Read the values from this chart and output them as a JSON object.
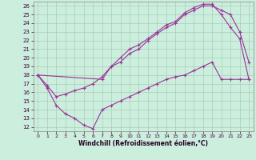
{
  "xlabel": "Windchill (Refroidissement éolien,°C)",
  "bg_color": "#cceedd",
  "grid_color": "#aaccbb",
  "line_color": "#993399",
  "xlim": [
    -0.5,
    23.5
  ],
  "ylim": [
    11.5,
    26.5
  ],
  "xticks": [
    0,
    1,
    2,
    3,
    4,
    5,
    6,
    7,
    8,
    9,
    10,
    11,
    12,
    13,
    14,
    15,
    16,
    17,
    18,
    19,
    20,
    21,
    22,
    23
  ],
  "yticks": [
    12,
    13,
    14,
    15,
    16,
    17,
    18,
    19,
    20,
    21,
    22,
    23,
    24,
    25,
    26
  ],
  "line1_x": [
    0,
    1,
    2,
    3,
    4,
    5,
    6,
    7,
    8,
    9,
    10,
    11,
    12,
    13,
    14,
    15,
    16,
    17,
    18,
    19,
    20,
    21,
    22,
    23
  ],
  "line1_y": [
    18,
    16.5,
    14.5,
    13.5,
    13.0,
    12.2,
    11.8,
    14.0,
    14.5,
    15.0,
    15.5,
    16.0,
    16.5,
    17.0,
    17.5,
    17.8,
    18.0,
    18.5,
    19.0,
    19.5,
    17.5,
    17.5,
    17.5,
    17.5
  ],
  "line2_x": [
    0,
    1,
    2,
    3,
    4,
    5,
    6,
    7,
    8,
    9,
    10,
    11,
    12,
    13,
    14,
    15,
    16,
    17,
    18,
    19,
    20,
    21,
    22,
    23
  ],
  "line2_y": [
    18,
    16.8,
    15.5,
    15.8,
    16.2,
    16.5,
    17.0,
    17.8,
    19.0,
    19.5,
    20.5,
    21.0,
    22.0,
    22.8,
    23.5,
    24.0,
    25.0,
    25.5,
    26.0,
    26.0,
    25.5,
    25.0,
    23.0,
    19.5
  ],
  "line3_x": [
    0,
    7,
    8,
    9,
    10,
    11,
    12,
    13,
    14,
    15,
    16,
    17,
    18,
    19,
    20,
    21,
    22,
    23
  ],
  "line3_y": [
    18,
    17.5,
    19.0,
    20.0,
    21.0,
    21.5,
    22.2,
    23.0,
    23.8,
    24.2,
    25.2,
    25.8,
    26.2,
    26.2,
    25.0,
    23.5,
    22.2,
    17.5
  ]
}
